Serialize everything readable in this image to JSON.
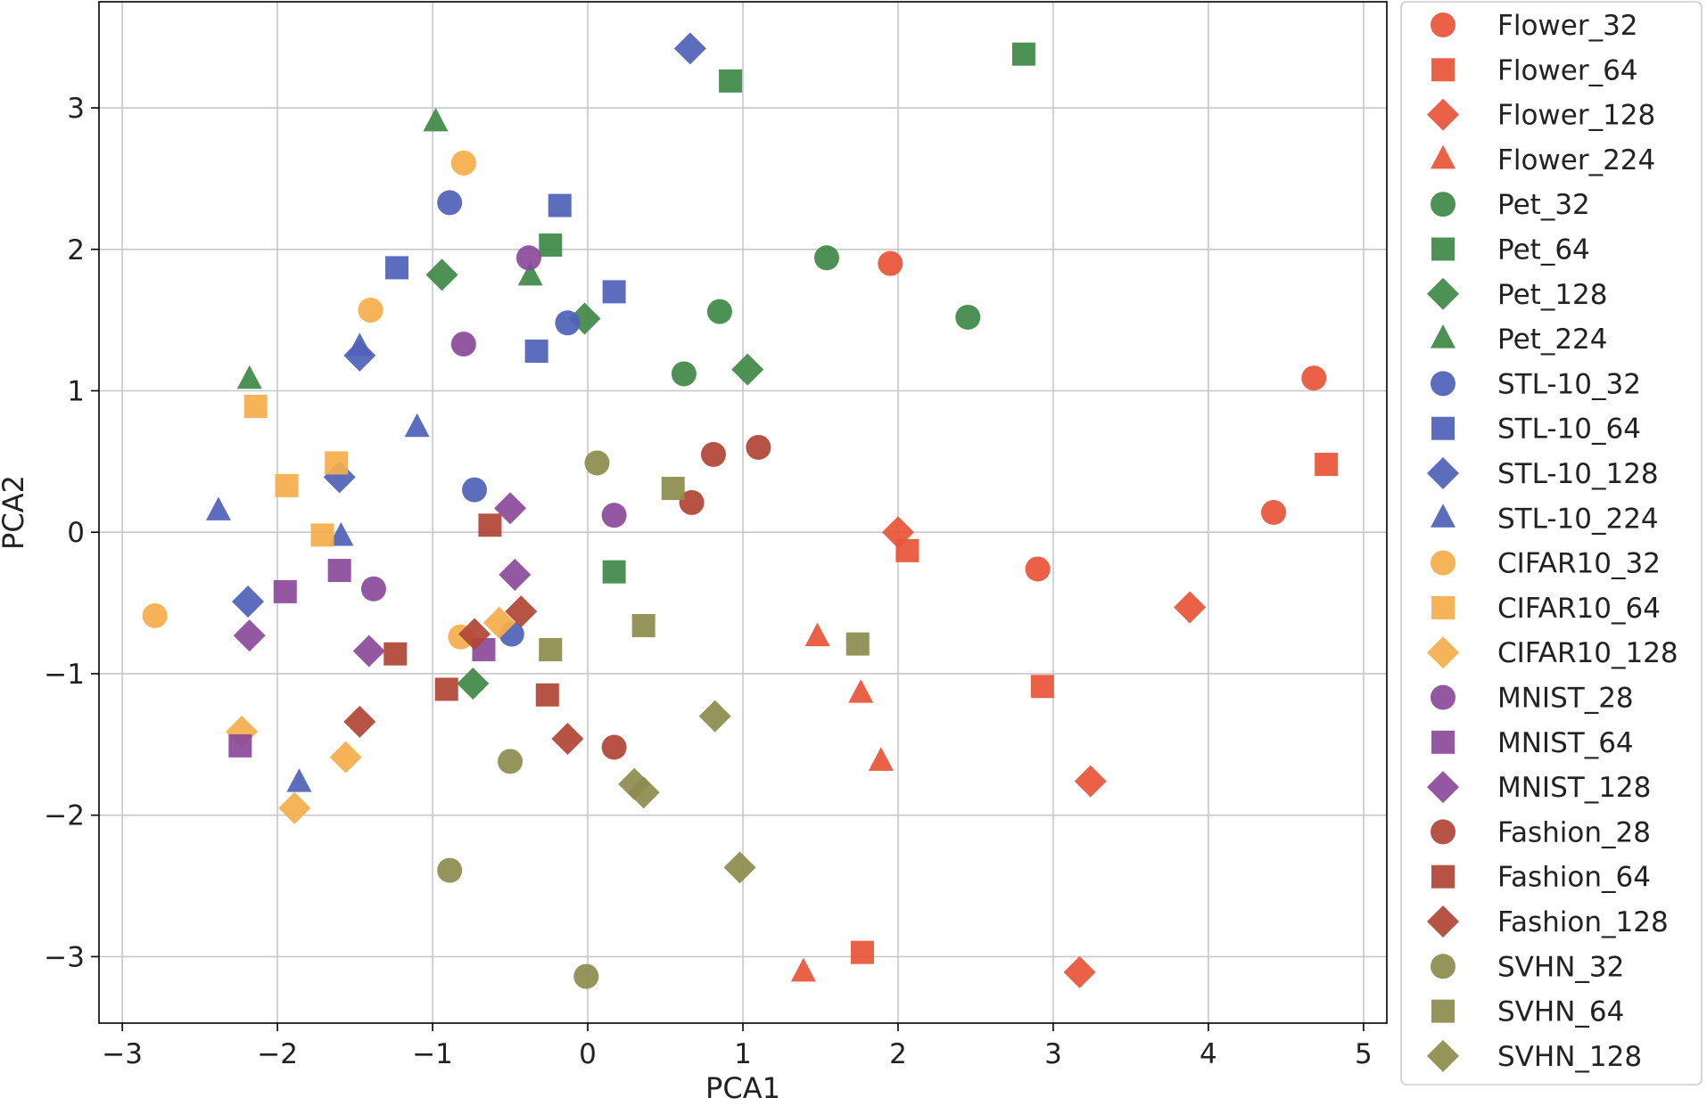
{
  "chart_data": {
    "type": "scatter",
    "title": "",
    "xlabel": "PCA1",
    "ylabel": "PCA2",
    "xlim": [
      -3.15,
      5.15
    ],
    "ylim": [
      -3.47,
      3.75
    ],
    "xticks": [
      -3,
      -2,
      -1,
      0,
      1,
      2,
      3,
      4,
      5
    ],
    "yticks": [
      -3,
      -2,
      -1,
      0,
      1,
      2,
      3
    ],
    "xtick_labels": [
      "−3",
      "−2",
      "−1",
      "0",
      "1",
      "2",
      "3",
      "4",
      "5"
    ],
    "ytick_labels": [
      "−3",
      "−2",
      "−1",
      "0",
      "1",
      "2",
      "3"
    ],
    "grid": true,
    "legend_position": "outside-right",
    "series": [
      {
        "name": "Flower_32",
        "color": "#e8553a",
        "marker": "circle",
        "points": [
          [
            1.95,
            1.9
          ],
          [
            4.68,
            1.09
          ],
          [
            4.42,
            0.14
          ],
          [
            2.9,
            -0.26
          ]
        ]
      },
      {
        "name": "Flower_64",
        "color": "#e8553a",
        "marker": "square",
        "points": [
          [
            4.76,
            0.48
          ],
          [
            2.06,
            -0.13
          ],
          [
            2.93,
            -1.09
          ],
          [
            1.77,
            -2.97
          ]
        ]
      },
      {
        "name": "Flower_128",
        "color": "#e8553a",
        "marker": "diamond",
        "points": [
          [
            2.0,
            0.0
          ],
          [
            3.88,
            -0.53
          ],
          [
            3.24,
            -1.76
          ],
          [
            3.17,
            -3.11
          ]
        ]
      },
      {
        "name": "Flower_224",
        "color": "#e8553a",
        "marker": "triangle",
        "points": [
          [
            1.48,
            -0.74
          ],
          [
            1.76,
            -1.14
          ],
          [
            1.89,
            -1.62
          ],
          [
            1.39,
            -3.11
          ]
        ]
      },
      {
        "name": "Pet_32",
        "color": "#3f8a47",
        "marker": "circle",
        "points": [
          [
            1.54,
            1.94
          ],
          [
            2.45,
            1.52
          ],
          [
            0.85,
            1.56
          ],
          [
            0.62,
            1.12
          ]
        ]
      },
      {
        "name": "Pet_64",
        "color": "#3f8a47",
        "marker": "square",
        "points": [
          [
            2.81,
            3.38
          ],
          [
            0.92,
            3.19
          ],
          [
            -0.24,
            2.03
          ],
          [
            0.17,
            -0.28
          ]
        ]
      },
      {
        "name": "Pet_128",
        "color": "#3f8a47",
        "marker": "diamond",
        "points": [
          [
            -0.94,
            1.82
          ],
          [
            -0.02,
            1.51
          ],
          [
            1.03,
            1.15
          ],
          [
            -0.74,
            -1.07
          ]
        ]
      },
      {
        "name": "Pet_224",
        "color": "#3f8a47",
        "marker": "triangle",
        "points": [
          [
            -0.98,
            2.9
          ],
          [
            -0.37,
            1.81
          ],
          [
            -2.18,
            1.08
          ]
        ]
      },
      {
        "name": "STL-10_32",
        "color": "#5062b8",
        "marker": "circle",
        "points": [
          [
            -0.89,
            2.33
          ],
          [
            -0.13,
            1.48
          ],
          [
            -0.73,
            0.3
          ],
          [
            -0.49,
            -0.72
          ]
        ]
      },
      {
        "name": "STL-10_64",
        "color": "#5062b8",
        "marker": "square",
        "points": [
          [
            -0.18,
            2.31
          ],
          [
            -1.23,
            1.87
          ],
          [
            0.17,
            1.7
          ],
          [
            -0.33,
            1.28
          ]
        ]
      },
      {
        "name": "STL-10_128",
        "color": "#5062b8",
        "marker": "diamond",
        "points": [
          [
            0.66,
            3.42
          ],
          [
            -1.47,
            1.25
          ],
          [
            -1.6,
            0.39
          ],
          [
            -2.19,
            -0.49
          ]
        ]
      },
      {
        "name": "STL-10_224",
        "color": "#5062b8",
        "marker": "triangle",
        "points": [
          [
            -1.47,
            1.31
          ],
          [
            -1.1,
            0.74
          ],
          [
            -2.38,
            0.15
          ],
          [
            -1.59,
            -0.03
          ],
          [
            -1.86,
            -1.77
          ]
        ]
      },
      {
        "name": "CIFAR10_32",
        "color": "#f5ad4b",
        "marker": "circle",
        "points": [
          [
            -0.8,
            2.61
          ],
          [
            -1.4,
            1.57
          ],
          [
            -2.79,
            -0.59
          ],
          [
            -0.82,
            -0.74
          ]
        ]
      },
      {
        "name": "CIFAR10_64",
        "color": "#f5ad4b",
        "marker": "square",
        "points": [
          [
            -2.14,
            0.89
          ],
          [
            -1.62,
            0.49
          ],
          [
            -1.94,
            0.33
          ],
          [
            -1.71,
            -0.02
          ]
        ]
      },
      {
        "name": "CIFAR10_128",
        "color": "#f5ad4b",
        "marker": "diamond",
        "points": [
          [
            -0.57,
            -0.64
          ],
          [
            -2.23,
            -1.41
          ],
          [
            -1.56,
            -1.59
          ],
          [
            -1.89,
            -1.95
          ]
        ]
      },
      {
        "name": "MNIST_28",
        "color": "#8c4a9a",
        "marker": "circle",
        "points": [
          [
            -0.38,
            1.94
          ],
          [
            -0.8,
            1.33
          ],
          [
            0.17,
            0.12
          ],
          [
            -1.38,
            -0.4
          ]
        ]
      },
      {
        "name": "MNIST_64",
        "color": "#8c4a9a",
        "marker": "square",
        "points": [
          [
            -1.95,
            -0.42
          ],
          [
            -1.6,
            -0.27
          ],
          [
            -0.67,
            -0.83
          ],
          [
            -2.24,
            -1.51
          ]
        ]
      },
      {
        "name": "MNIST_128",
        "color": "#8c4a9a",
        "marker": "diamond",
        "points": [
          [
            -0.5,
            0.17
          ],
          [
            -0.47,
            -0.3
          ],
          [
            -1.41,
            -0.84
          ],
          [
            -2.18,
            -0.73
          ]
        ]
      },
      {
        "name": "Fashion_28",
        "color": "#b24637",
        "marker": "circle",
        "points": [
          [
            0.81,
            0.55
          ],
          [
            1.1,
            0.6
          ],
          [
            0.67,
            0.21
          ],
          [
            0.17,
            -1.52
          ]
        ]
      },
      {
        "name": "Fashion_64",
        "color": "#b24637",
        "marker": "square",
        "points": [
          [
            -0.63,
            0.05
          ],
          [
            -1.24,
            -0.86
          ],
          [
            -0.91,
            -1.11
          ],
          [
            -0.26,
            -1.15
          ]
        ]
      },
      {
        "name": "Fashion_128",
        "color": "#b24637",
        "marker": "diamond",
        "points": [
          [
            -0.73,
            -0.72
          ],
          [
            -0.43,
            -0.56
          ],
          [
            -1.47,
            -1.34
          ],
          [
            -0.13,
            -1.46
          ]
        ]
      },
      {
        "name": "SVHN_32",
        "color": "#8c8c4f",
        "marker": "circle",
        "points": [
          [
            0.06,
            0.49
          ],
          [
            -0.5,
            -1.62
          ],
          [
            -0.89,
            -2.39
          ],
          [
            -0.01,
            -3.14
          ]
        ]
      },
      {
        "name": "SVHN_64",
        "color": "#8c8c4f",
        "marker": "square",
        "points": [
          [
            0.55,
            0.31
          ],
          [
            0.36,
            -0.66
          ],
          [
            1.74,
            -0.79
          ],
          [
            -0.24,
            -0.83
          ]
        ]
      },
      {
        "name": "SVHN_128",
        "color": "#8c8c4f",
        "marker": "diamond",
        "points": [
          [
            0.82,
            -1.3
          ],
          [
            0.3,
            -1.78
          ],
          [
            0.36,
            -1.84
          ],
          [
            0.98,
            -2.37
          ]
        ]
      }
    ]
  }
}
